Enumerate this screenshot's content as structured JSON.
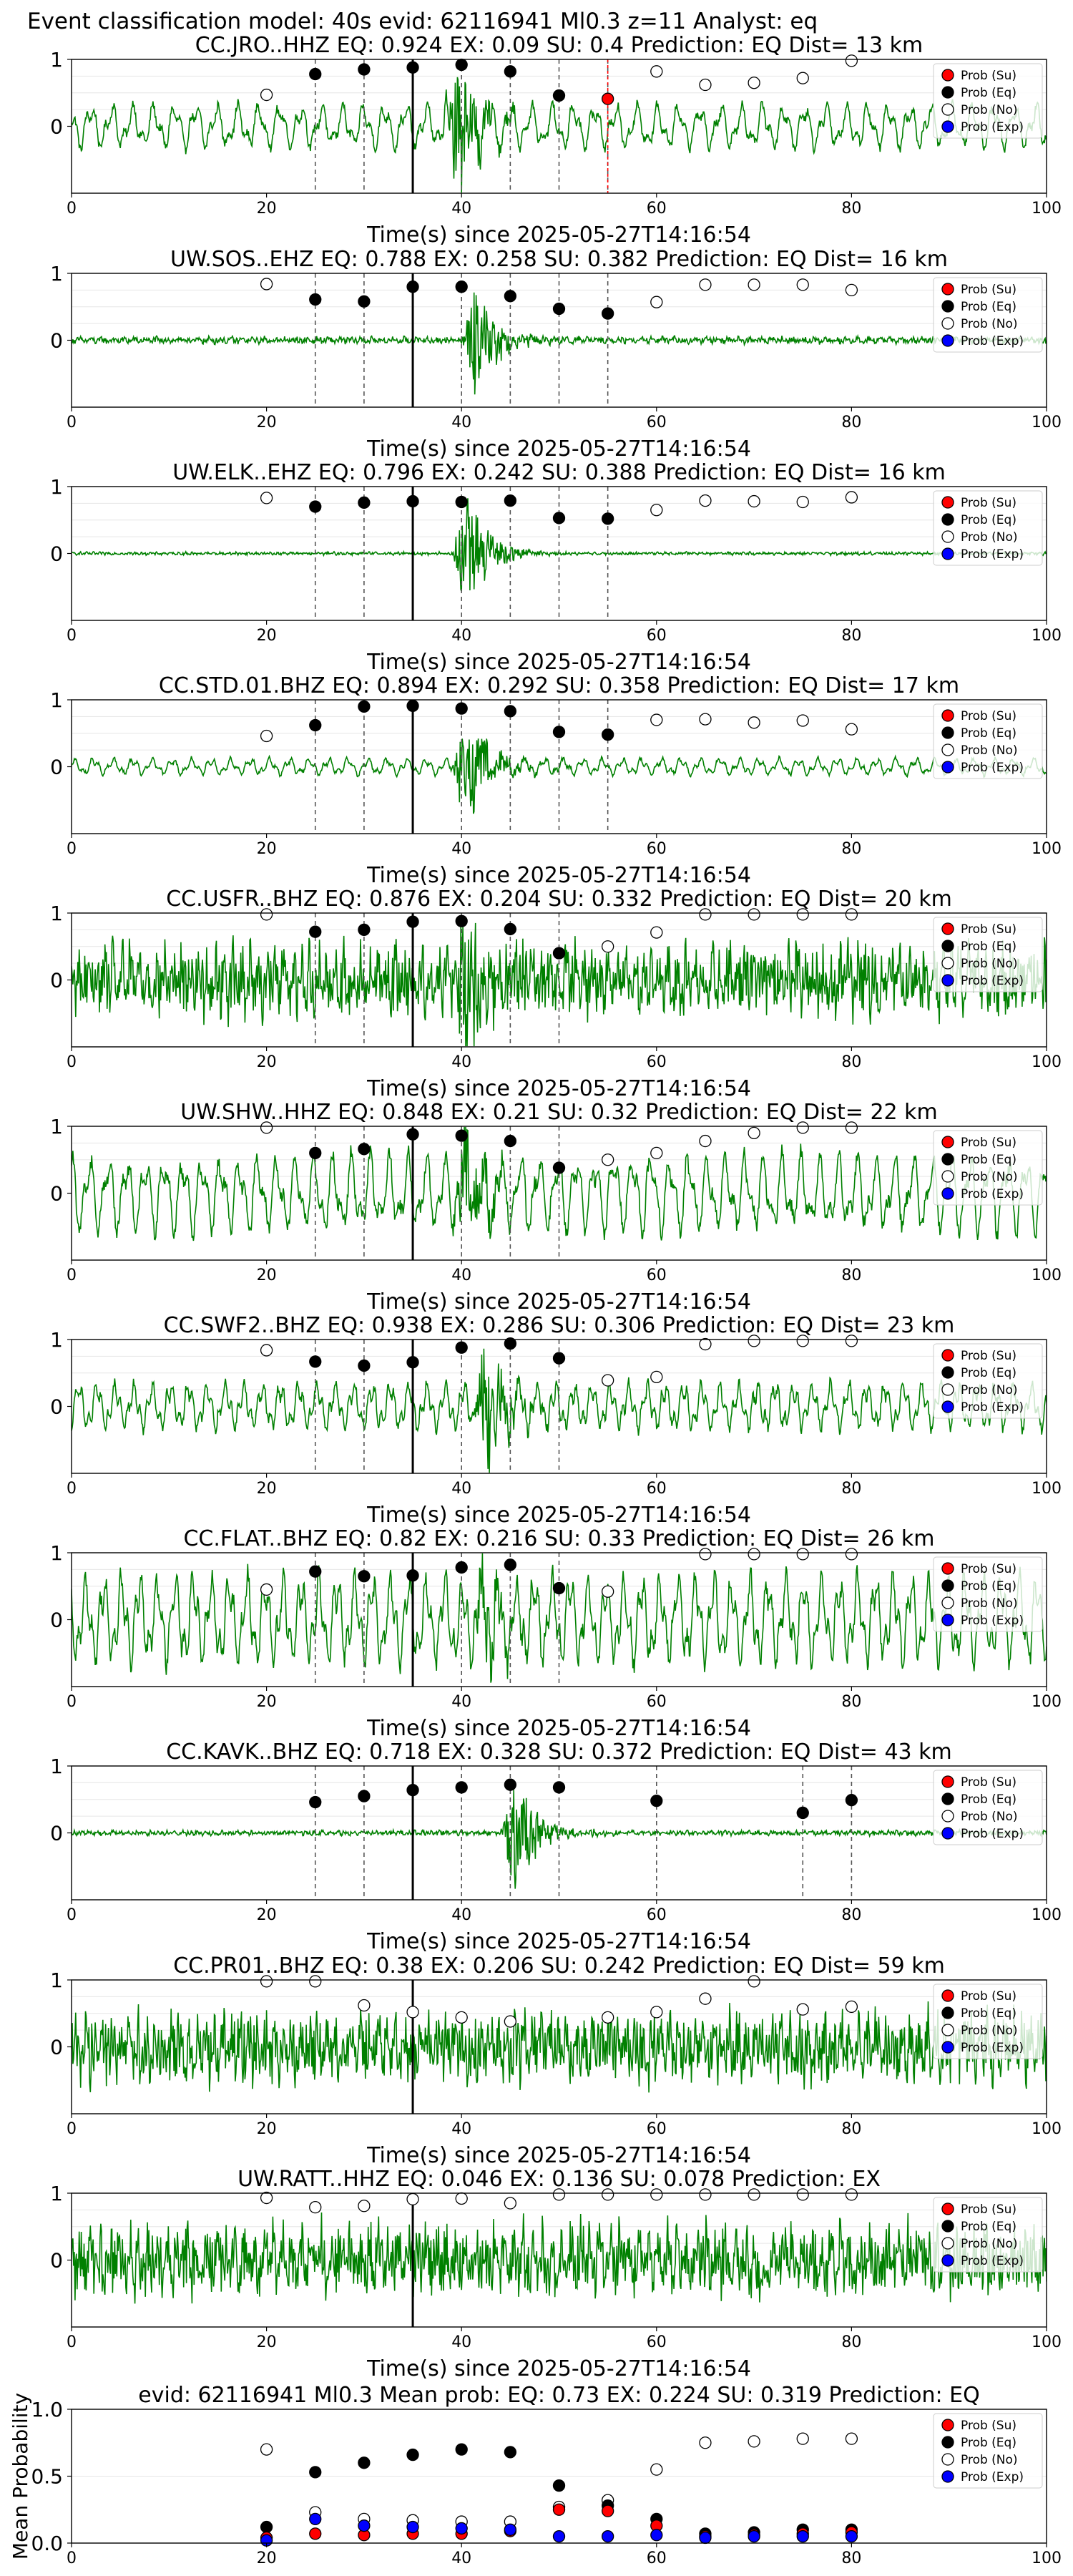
{
  "figure_title": "Event classification model: 40s evid: 62116941 Ml0.3 z=11 Analyst: eq",
  "colors": {
    "waveform": "#008000",
    "prob_su": "#ff0000",
    "prob_eq": "#000000",
    "prob_no": "#ffffff",
    "prob_exp": "#0000ff",
    "arrival_line": "#ff0000",
    "reference_line": "#000000",
    "dashed_line": "#555555"
  },
  "legend_entries": [
    "Prob (Su)",
    "Prob (Eq)",
    "Prob (No)",
    "Prob (Exp)"
  ],
  "chart_data": [
    {
      "type": "scatter",
      "title": "CC.JRO..HHZ   EQ: 0.924  EX: 0.09  SU: 0.4   Prediction: EQ    Dist= 13 km",
      "xlabel": "Time(s) since 2025-05-27T14:16:54",
      "xlim": [
        0,
        100
      ],
      "xticks": [
        0,
        20,
        40,
        60,
        80,
        100
      ],
      "ylim": [
        -1,
        1
      ],
      "yticks": [
        0,
        1
      ],
      "legend_position": "top-right",
      "waveform": {
        "amplitude": 0.42,
        "event_time": 39,
        "event_amplitude": 1.0,
        "smooth": true
      },
      "reference_line_x": 35,
      "arrival_line_x": 55,
      "dashed_lines_x": [
        25,
        30,
        40,
        45,
        50,
        55
      ],
      "series": [
        {
          "name": "Prob (No)",
          "x": [
            20,
            60,
            65,
            70,
            75,
            80
          ],
          "y": [
            0.47,
            0.82,
            0.62,
            0.65,
            0.72,
            0.98
          ]
        },
        {
          "name": "Prob (Eq)",
          "x": [
            25,
            30,
            35,
            40,
            45,
            50
          ],
          "y": [
            0.78,
            0.85,
            0.88,
            0.92,
            0.82,
            0.46
          ]
        },
        {
          "name": "Prob (Su)",
          "x": [
            55
          ],
          "y": [
            0.41
          ]
        }
      ]
    },
    {
      "type": "scatter",
      "title": "UW.SOS..EHZ   EQ: 0.788  EX: 0.258  SU: 0.382   Prediction: EQ    Dist= 16 km",
      "xlabel": "Time(s) since 2025-05-27T14:16:54",
      "xlim": [
        0,
        100
      ],
      "xticks": [
        0,
        20,
        40,
        60,
        80,
        100
      ],
      "ylim": [
        -1,
        1
      ],
      "yticks": [
        0,
        1
      ],
      "legend_position": "top-right",
      "waveform": {
        "amplitude": 0.07,
        "event_time": 41,
        "event_amplitude": 0.9,
        "smooth": false
      },
      "reference_line_x": 35,
      "dashed_lines_x": [
        25,
        30,
        40,
        45,
        50,
        55
      ],
      "series": [
        {
          "name": "Prob (No)",
          "x": [
            20,
            60,
            65,
            70,
            75,
            80
          ],
          "y": [
            0.84,
            0.57,
            0.83,
            0.83,
            0.83,
            0.75
          ]
        },
        {
          "name": "Prob (Eq)",
          "x": [
            25,
            30,
            35,
            40,
            45,
            50,
            55
          ],
          "y": [
            0.61,
            0.58,
            0.8,
            0.8,
            0.66,
            0.47,
            0.4
          ]
        }
      ]
    },
    {
      "type": "scatter",
      "title": "UW.ELK..EHZ   EQ: 0.796  EX: 0.242  SU: 0.388   Prediction: EQ    Dist= 16 km",
      "xlabel": "Time(s) since 2025-05-27T14:16:54",
      "xlim": [
        0,
        100
      ],
      "xticks": [
        0,
        20,
        40,
        60,
        80,
        100
      ],
      "ylim": [
        -1,
        1
      ],
      "yticks": [
        0,
        1
      ],
      "legend_position": "top-right",
      "waveform": {
        "amplitude": 0.03,
        "event_time": 40,
        "event_amplitude": 0.95,
        "smooth": false
      },
      "reference_line_x": 35,
      "dashed_lines_x": [
        25,
        30,
        40,
        45,
        50,
        55
      ],
      "series": [
        {
          "name": "Prob (No)",
          "x": [
            20,
            60,
            65,
            70,
            75,
            80
          ],
          "y": [
            0.83,
            0.65,
            0.79,
            0.78,
            0.77,
            0.84
          ]
        },
        {
          "name": "Prob (Eq)",
          "x": [
            25,
            30,
            35,
            40,
            45,
            50,
            55
          ],
          "y": [
            0.7,
            0.76,
            0.78,
            0.77,
            0.79,
            0.53,
            0.52
          ]
        }
      ]
    },
    {
      "type": "scatter",
      "title": "CC.STD.01.BHZ   EQ: 0.894  EX: 0.292  SU: 0.358   Prediction: EQ    Dist= 17 km",
      "xlabel": "Time(s) since 2025-05-27T14:16:54",
      "xlim": [
        0,
        100
      ],
      "xticks": [
        0,
        20,
        40,
        60,
        80,
        100
      ],
      "ylim": [
        -1,
        1
      ],
      "yticks": [
        0,
        1
      ],
      "legend_position": "top-right",
      "waveform": {
        "amplitude": 0.16,
        "event_time": 40,
        "event_amplitude": 0.9,
        "smooth": true
      },
      "reference_line_x": 35,
      "dashed_lines_x": [
        25,
        30,
        40,
        45,
        50,
        55
      ],
      "series": [
        {
          "name": "Prob (No)",
          "x": [
            20,
            60,
            65,
            70,
            75,
            80
          ],
          "y": [
            0.46,
            0.7,
            0.71,
            0.66,
            0.69,
            0.56
          ]
        },
        {
          "name": "Prob (Eq)",
          "x": [
            25,
            30,
            35,
            40,
            45,
            50,
            55
          ],
          "y": [
            0.62,
            0.9,
            0.91,
            0.87,
            0.83,
            0.52,
            0.48
          ]
        }
      ]
    },
    {
      "type": "scatter",
      "title": "CC.USFR..BHZ   EQ: 0.876  EX: 0.204  SU: 0.332   Prediction: EQ    Dist= 20 km",
      "xlabel": "Time(s) since 2025-05-27T14:16:54",
      "xlim": [
        0,
        100
      ],
      "xticks": [
        0,
        20,
        40,
        60,
        80,
        100
      ],
      "ylim": [
        -1,
        1
      ],
      "yticks": [
        0,
        1
      ],
      "legend_position": "top-right",
      "waveform": {
        "amplitude": 0.72,
        "event_time": 40,
        "event_amplitude": 1.0,
        "smooth": false
      },
      "reference_line_x": 35,
      "dashed_lines_x": [
        25,
        30,
        40,
        45,
        50
      ],
      "series": [
        {
          "name": "Prob (No)",
          "x": [
            20,
            55,
            60,
            65,
            70,
            75,
            80
          ],
          "y": [
            0.98,
            0.5,
            0.71,
            0.98,
            0.98,
            0.98,
            0.98
          ]
        },
        {
          "name": "Prob (Eq)",
          "x": [
            25,
            30,
            35,
            40,
            45,
            50
          ],
          "y": [
            0.72,
            0.75,
            0.87,
            0.88,
            0.76,
            0.4
          ]
        }
      ]
    },
    {
      "type": "scatter",
      "title": "UW.SHW..HHZ   EQ: 0.848  EX: 0.21  SU: 0.32   Prediction: EQ    Dist= 22 km",
      "xlabel": "Time(s) since 2025-05-27T14:16:54",
      "xlim": [
        0,
        100
      ],
      "xticks": [
        0,
        20,
        40,
        60,
        80,
        100
      ],
      "ylim": [
        -1,
        1
      ],
      "yticks": [
        0,
        1
      ],
      "legend_position": "top-right",
      "waveform": {
        "amplitude": 0.75,
        "event_time": 40,
        "event_amplitude": 0.8,
        "smooth": true
      },
      "reference_line_x": 35,
      "dashed_lines_x": [
        25,
        30,
        40,
        45,
        50
      ],
      "series": [
        {
          "name": "Prob (No)",
          "x": [
            20,
            55,
            60,
            65,
            70,
            75,
            80
          ],
          "y": [
            0.98,
            0.5,
            0.6,
            0.78,
            0.9,
            0.98,
            0.98
          ]
        },
        {
          "name": "Prob (Eq)",
          "x": [
            25,
            30,
            35,
            40,
            45,
            50
          ],
          "y": [
            0.6,
            0.66,
            0.88,
            0.86,
            0.78,
            0.38
          ]
        }
      ]
    },
    {
      "type": "scatter",
      "title": "CC.SWF2..BHZ   EQ: 0.938  EX: 0.286  SU: 0.306   Prediction: EQ    Dist= 23 km",
      "xlabel": "Time(s) since 2025-05-27T14:16:54",
      "xlim": [
        0,
        100
      ],
      "xticks": [
        0,
        20,
        40,
        60,
        80,
        100
      ],
      "ylim": [
        -1,
        1
      ],
      "yticks": [
        0,
        1
      ],
      "legend_position": "top-right",
      "waveform": {
        "amplitude": 0.45,
        "event_time": 42,
        "event_amplitude": 0.9,
        "smooth": true
      },
      "reference_line_x": 35,
      "dashed_lines_x": [
        25,
        30,
        40,
        45,
        50
      ],
      "series": [
        {
          "name": "Prob (No)",
          "x": [
            20,
            55,
            60,
            65,
            70,
            75,
            80
          ],
          "y": [
            0.84,
            0.39,
            0.44,
            0.93,
            0.98,
            0.98,
            0.98
          ]
        },
        {
          "name": "Prob (Eq)",
          "x": [
            25,
            30,
            35,
            40,
            45,
            50
          ],
          "y": [
            0.67,
            0.61,
            0.66,
            0.88,
            0.94,
            0.72
          ]
        }
      ]
    },
    {
      "type": "scatter",
      "title": "CC.FLAT..BHZ   EQ: 0.82  EX: 0.216  SU: 0.33   Prediction: EQ    Dist= 26 km",
      "xlabel": "Time(s) since 2025-05-27T14:16:54",
      "xlim": [
        0,
        100
      ],
      "xticks": [
        0,
        20,
        40,
        60,
        80,
        100
      ],
      "ylim": [
        -1,
        1
      ],
      "yticks": [
        0,
        1
      ],
      "legend_position": "top-right",
      "waveform": {
        "amplitude": 0.85,
        "event_time": 42,
        "event_amplitude": 0.6,
        "smooth": true
      },
      "reference_line_x": 35,
      "dashed_lines_x": [
        25,
        30,
        40,
        45,
        50
      ],
      "series": [
        {
          "name": "Prob (No)",
          "x": [
            20,
            55,
            65,
            70,
            75,
            80
          ],
          "y": [
            0.45,
            0.42,
            0.98,
            0.98,
            0.98,
            0.98
          ]
        },
        {
          "name": "Prob (Eq)",
          "x": [
            25,
            30,
            35,
            40,
            45,
            50
          ],
          "y": [
            0.72,
            0.65,
            0.66,
            0.78,
            0.82,
            0.47
          ]
        }
      ]
    },
    {
      "type": "scatter",
      "title": "CC.KAVK..BHZ   EQ: 0.718  EX: 0.328  SU: 0.372   Prediction: EQ    Dist= 43 km",
      "xlabel": "Time(s) since 2025-05-27T14:16:54",
      "xlim": [
        0,
        100
      ],
      "xticks": [
        0,
        20,
        40,
        60,
        80,
        100
      ],
      "ylim": [
        -1,
        1
      ],
      "yticks": [
        0,
        1
      ],
      "legend_position": "top-right",
      "waveform": {
        "amplitude": 0.05,
        "event_time": 45,
        "event_amplitude": 0.95,
        "smooth": false
      },
      "reference_line_x": 35,
      "dashed_lines_x": [
        25,
        30,
        40,
        45,
        50,
        60,
        75,
        80
      ],
      "series": [
        {
          "name": "Prob (Eq)",
          "x": [
            25,
            30,
            35,
            40,
            45,
            50,
            60,
            75,
            80
          ],
          "y": [
            0.46,
            0.55,
            0.64,
            0.68,
            0.72,
            0.68,
            0.48,
            0.3,
            0.49
          ]
        }
      ]
    },
    {
      "type": "scatter",
      "title": "CC.PR01..BHZ   EQ: 0.38  EX: 0.206  SU: 0.242   Prediction: EQ    Dist= 59 km",
      "xlabel": "Time(s) since 2025-05-27T14:16:54",
      "xlim": [
        0,
        100
      ],
      "xticks": [
        0,
        20,
        40,
        60,
        80,
        100
      ],
      "ylim": [
        -1,
        1
      ],
      "yticks": [
        0,
        1
      ],
      "legend_position": "top-right",
      "waveform": {
        "amplitude": 0.72,
        "event_time": 0,
        "event_amplitude": 0,
        "smooth": false
      },
      "reference_line_x": 35,
      "dashed_lines_x": [],
      "series": [
        {
          "name": "Prob (No)",
          "x": [
            20,
            25,
            30,
            35,
            40,
            45,
            55,
            60,
            65,
            70,
            75,
            80
          ],
          "y": [
            0.98,
            0.98,
            0.62,
            0.52,
            0.44,
            0.38,
            0.44,
            0.52,
            0.72,
            0.98,
            0.56,
            0.6
          ]
        }
      ]
    },
    {
      "type": "scatter",
      "title": "UW.RATT..HHZ   EQ: 0.046  EX: 0.136  SU: 0.078   Prediction: EX",
      "xlabel": "Time(s) since 2025-05-27T14:16:54",
      "xlim": [
        0,
        100
      ],
      "xticks": [
        0,
        20,
        40,
        60,
        80,
        100
      ],
      "ylim": [
        -1,
        1
      ],
      "yticks": [
        0,
        1
      ],
      "legend_position": "top-right",
      "waveform": {
        "amplitude": 0.72,
        "event_time": 0,
        "event_amplitude": 0,
        "smooth": false
      },
      "reference_line_x": 35,
      "dashed_lines_x": [],
      "series": [
        {
          "name": "Prob (No)",
          "x": [
            20,
            25,
            30,
            35,
            40,
            45,
            50,
            55,
            60,
            65,
            70,
            75,
            80
          ],
          "y": [
            0.93,
            0.79,
            0.81,
            0.91,
            0.92,
            0.85,
            0.98,
            0.98,
            0.98,
            0.98,
            0.98,
            0.98,
            0.98
          ]
        }
      ]
    },
    {
      "type": "scatter",
      "title": "evid: 62116941  Ml0.3   Mean prob:   EQ: 0.73  EX: 0.224  SU: 0.319   Prediction: EQ",
      "xlabel": "",
      "ylabel": "Mean Probability",
      "xlim": [
        0,
        100
      ],
      "xticks": [
        0,
        20,
        40,
        60,
        80,
        100
      ],
      "ylim": [
        0,
        1
      ],
      "yticks": [
        0.0,
        0.5,
        1.0
      ],
      "ytick_labels": [
        "0.0",
        "0.5",
        "1.0"
      ],
      "legend_position": "top-right",
      "series": [
        {
          "name": "Prob (No)",
          "x": [
            20,
            25,
            30,
            35,
            40,
            45,
            50,
            55,
            60,
            65,
            70,
            75,
            80
          ],
          "y": [
            0.7,
            0.23,
            0.18,
            0.17,
            0.16,
            0.16,
            0.27,
            0.32,
            0.55,
            0.75,
            0.76,
            0.78,
            0.78
          ]
        },
        {
          "name": "Prob (Eq)",
          "x": [
            20,
            25,
            30,
            35,
            40,
            45,
            50,
            55,
            60,
            65,
            70,
            75,
            80
          ],
          "y": [
            0.12,
            0.53,
            0.6,
            0.66,
            0.7,
            0.68,
            0.43,
            0.28,
            0.18,
            0.07,
            0.08,
            0.1,
            0.1
          ]
        },
        {
          "name": "Prob (Su)",
          "x": [
            20,
            25,
            30,
            35,
            40,
            45,
            50,
            55,
            60,
            65,
            70,
            75,
            80
          ],
          "y": [
            0.04,
            0.07,
            0.06,
            0.07,
            0.07,
            0.09,
            0.25,
            0.24,
            0.13,
            0.05,
            0.06,
            0.07,
            0.08
          ]
        },
        {
          "name": "Prob (Exp)",
          "x": [
            20,
            25,
            30,
            35,
            40,
            45,
            50,
            55,
            60,
            65,
            70,
            75,
            80
          ],
          "y": [
            0.02,
            0.18,
            0.13,
            0.12,
            0.11,
            0.1,
            0.05,
            0.05,
            0.06,
            0.04,
            0.05,
            0.05,
            0.05
          ]
        }
      ]
    }
  ]
}
